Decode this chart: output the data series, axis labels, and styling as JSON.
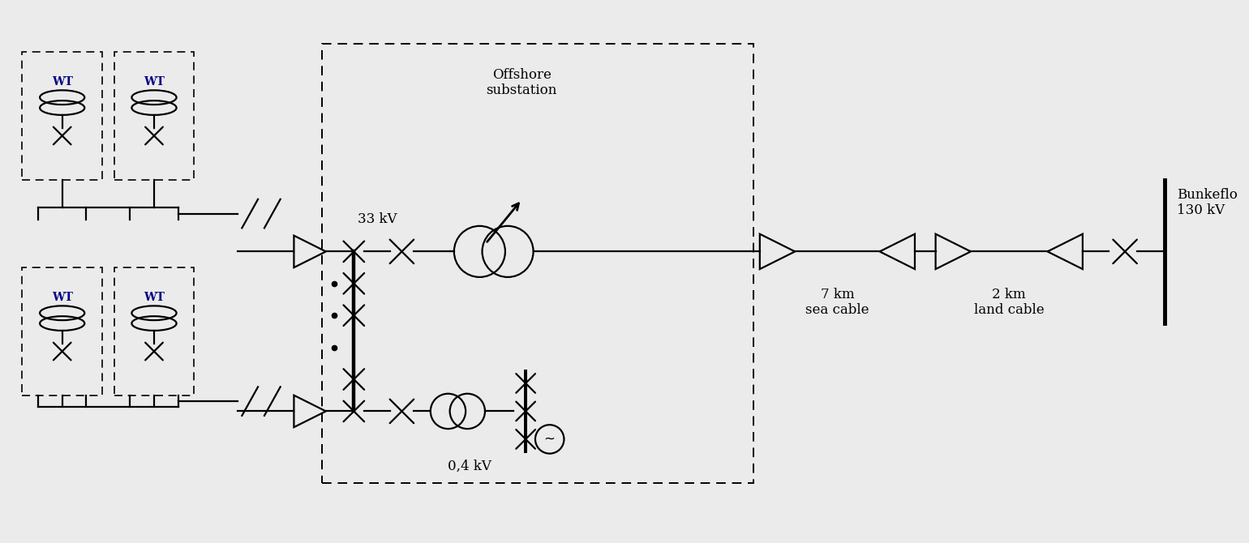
{
  "bg_color": "#ebebeb",
  "line_color": "#000000",
  "wt_label_color": "#000080",
  "text_color": "#000000",
  "kv33_color": "#000000",
  "kv04_color": "#000000",
  "lw": 1.6,
  "offshore_label": "Offshore\nsubstation",
  "v33_label": "33 kV",
  "v04_label": "0,4 kV",
  "bunkeflo_label": "Bunkeflo\n130 kV",
  "sea_cable_label": "7 km\nsea cable",
  "land_cable_label": "2 km\nland cable",
  "wt_label": "WT",
  "xlim": [
    0,
    154
  ],
  "ylim": [
    0,
    67
  ]
}
